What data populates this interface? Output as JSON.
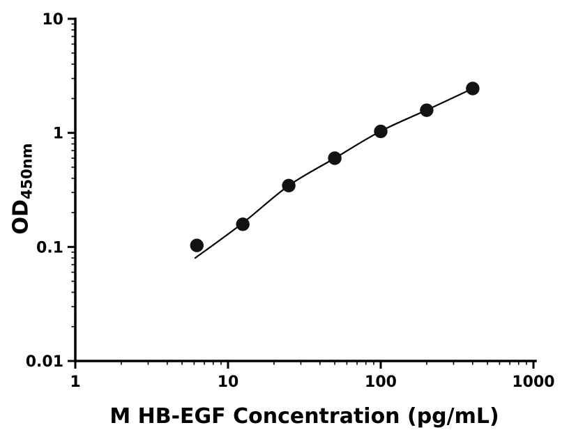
{
  "figure": {
    "background": "#ffffff",
    "axis_color": "#000000",
    "curve_color": "#000000",
    "marker_color": "#121212"
  },
  "chart_data": {
    "type": "scatter",
    "title": "",
    "xlabel": "M HB-EGF Concentration (pg/mL)",
    "ylabel": "OD",
    "ylabel_sub": "450nm",
    "xscale": "log",
    "yscale": "log",
    "xlim": [
      1,
      1000
    ],
    "ylim": [
      0.01,
      10
    ],
    "x_ticks": [
      1,
      10,
      100,
      1000
    ],
    "x_tick_labels": [
      "1",
      "10",
      "100",
      "1000"
    ],
    "y_ticks": [
      0.01,
      0.1,
      1,
      10
    ],
    "y_tick_labels": [
      "0.01",
      "0.1",
      "1",
      "10"
    ],
    "minor_ticks": true,
    "grid": false,
    "legend": "none",
    "series": [
      {
        "name": "standard-points",
        "kind": "scatter",
        "x": [
          6.25,
          12.5,
          25,
          50,
          100,
          200,
          400
        ],
        "y": [
          0.103,
          0.158,
          0.345,
          0.6,
          1.03,
          1.58,
          2.45
        ]
      },
      {
        "name": "fit-curve",
        "kind": "line",
        "x": [
          6.1,
          12.5,
          25,
          50,
          100,
          200,
          400
        ],
        "y": [
          0.08,
          0.162,
          0.345,
          0.6,
          1.035,
          1.585,
          2.45
        ]
      }
    ]
  }
}
